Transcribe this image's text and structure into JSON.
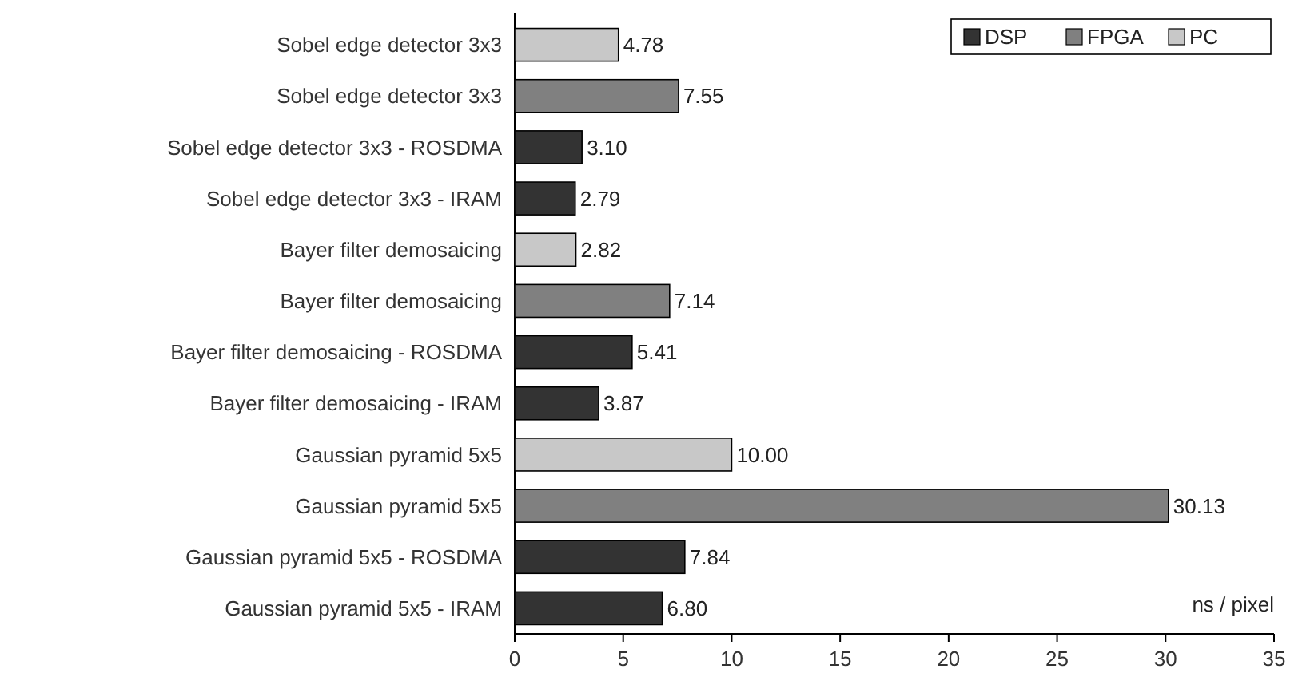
{
  "chart_data": {
    "type": "bar",
    "orientation": "horizontal",
    "xlabel": "ns / pixel",
    "categories": [
      "Sobel edge detector 3x3",
      "Sobel edge detector 3x3",
      "Sobel edge detector 3x3 - ROSDMA",
      "Sobel edge detector 3x3 - IRAM",
      "Bayer filter demosaicing",
      "Bayer filter demosaicing",
      "Bayer filter demosaicing - ROSDMA",
      "Bayer filter demosaicing - IRAM",
      "Gaussian pyramid 5x5",
      "Gaussian pyramid 5x5",
      "Gaussian pyramid 5x5 - ROSDMA",
      "Gaussian pyramid 5x5 - IRAM"
    ],
    "series": [
      {
        "name": "DSP",
        "color": "#333333",
        "values": [
          null,
          null,
          3.1,
          2.79,
          null,
          null,
          5.41,
          3.87,
          null,
          null,
          7.84,
          6.8
        ],
        "value_labels": [
          null,
          null,
          "3.10",
          "2.79",
          null,
          null,
          "5.41",
          "3.87",
          null,
          null,
          "7.84",
          "6.80"
        ]
      },
      {
        "name": "FPGA",
        "color": "#808080",
        "values": [
          null,
          7.55,
          null,
          null,
          null,
          7.14,
          null,
          null,
          null,
          30.13,
          null,
          null
        ],
        "value_labels": [
          null,
          "7.55",
          null,
          null,
          null,
          "7.14",
          null,
          null,
          null,
          "30.13",
          null,
          null
        ]
      },
      {
        "name": "PC",
        "color": "#c8c8c8",
        "values": [
          4.78,
          null,
          null,
          null,
          2.82,
          null,
          null,
          null,
          10.0,
          null,
          null,
          null
        ],
        "value_labels": [
          "4.78",
          null,
          null,
          null,
          "2.82",
          null,
          null,
          null,
          "10.00",
          null,
          null,
          null
        ]
      }
    ],
    "xlim": [
      0,
      35
    ],
    "xticks": [
      0,
      5,
      10,
      15,
      20,
      25,
      30,
      35
    ],
    "grid": false,
    "legend": "top right"
  }
}
